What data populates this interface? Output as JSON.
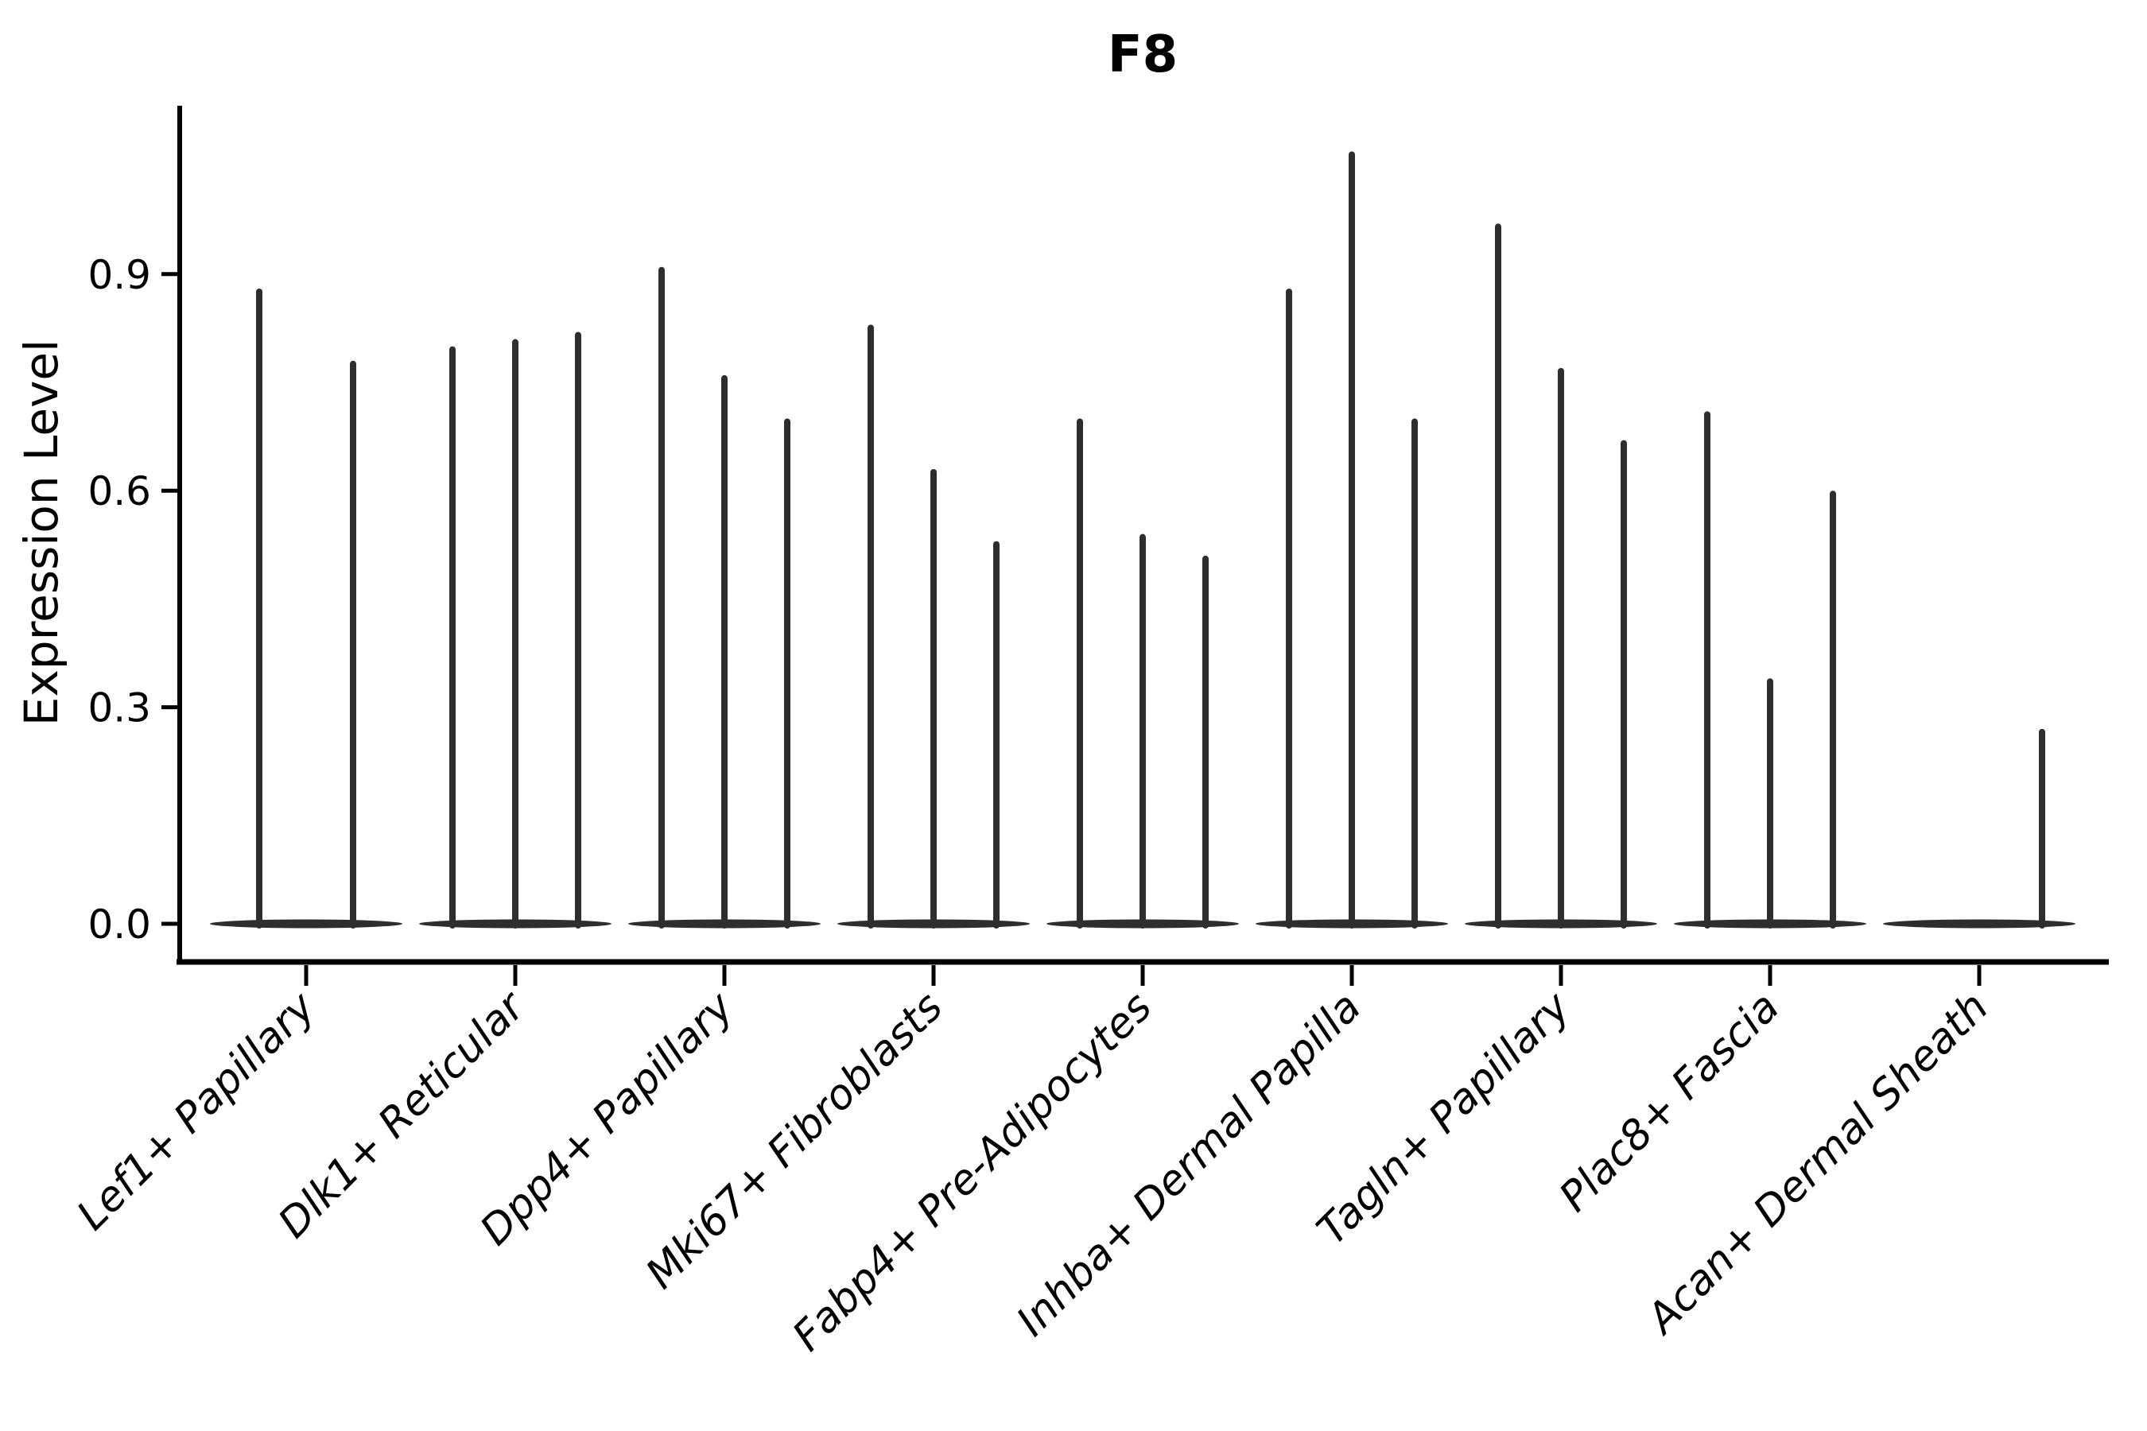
{
  "chart_data": {
    "type": "violin",
    "title": "F8",
    "xlabel": "",
    "ylabel": "Expression Level",
    "ylim": [
      -0.053,
      1.13
    ],
    "yticks": [
      0.0,
      0.3,
      0.6,
      0.9
    ],
    "ytick_labels": [
      "0.0",
      "0.3",
      "0.6",
      "0.9"
    ],
    "grid": "off",
    "legend": "none",
    "categories": [
      "Lef1+ Papillary",
      "Dlk1+ Reticular",
      "Dpp4+ Papillary",
      "Mki67+ Fibroblasts",
      "Fabp4+ Pre-Adipocytes",
      "Inhba+ Dermal Papilla",
      "Tagln+ Papillary",
      "Plac8+ Fascia",
      "Acan+ Dermal Sheath"
    ],
    "groups": [
      {
        "category": "Lef1+ Papillary",
        "violins": [
          {
            "dx": -59,
            "max": 0.88
          },
          {
            "dx": 59,
            "max": 0.78
          }
        ]
      },
      {
        "category": "Dlk1+ Reticular",
        "violins": [
          {
            "dx": -79,
            "max": 0.8
          },
          {
            "dx": 0,
            "max": 0.81
          },
          {
            "dx": 79,
            "max": 0.82
          }
        ]
      },
      {
        "category": "Dpp4+ Papillary",
        "violins": [
          {
            "dx": -79,
            "max": 0.91
          },
          {
            "dx": 0,
            "max": 0.76
          },
          {
            "dx": 79,
            "max": 0.7
          }
        ]
      },
      {
        "category": "Mki67+ Fibroblasts",
        "violins": [
          {
            "dx": -79,
            "max": 0.83
          },
          {
            "dx": 0,
            "max": 0.63
          },
          {
            "dx": 79,
            "max": 0.53
          }
        ]
      },
      {
        "category": "Fabp4+ Pre-Adipocytes",
        "violins": [
          {
            "dx": -79,
            "max": 0.7
          },
          {
            "dx": 0,
            "max": 0.54
          },
          {
            "dx": 79,
            "max": 0.51
          }
        ]
      },
      {
        "category": "Inhba+ Dermal Papilla",
        "violins": [
          {
            "dx": -79,
            "max": 0.88
          },
          {
            "dx": 0,
            "max": 1.07
          },
          {
            "dx": 79,
            "max": 0.7
          }
        ]
      },
      {
        "category": "Tagln+ Papillary",
        "violins": [
          {
            "dx": -79,
            "max": 0.97
          },
          {
            "dx": 0,
            "max": 0.77
          },
          {
            "dx": 79,
            "max": 0.67
          }
        ]
      },
      {
        "category": "Plac8+ Fascia",
        "violins": [
          {
            "dx": -79,
            "max": 0.71
          },
          {
            "dx": 0,
            "max": 0.34
          },
          {
            "dx": 79,
            "max": 0.6
          }
        ]
      },
      {
        "category": "Acan+ Dermal Sheath",
        "violins": [
          {
            "dx": 79,
            "max": 0.27
          }
        ]
      }
    ],
    "colors": {
      "violin": "#2e2e2e",
      "axis": "#000000",
      "text": "#000000",
      "background": "#ffffff"
    }
  }
}
